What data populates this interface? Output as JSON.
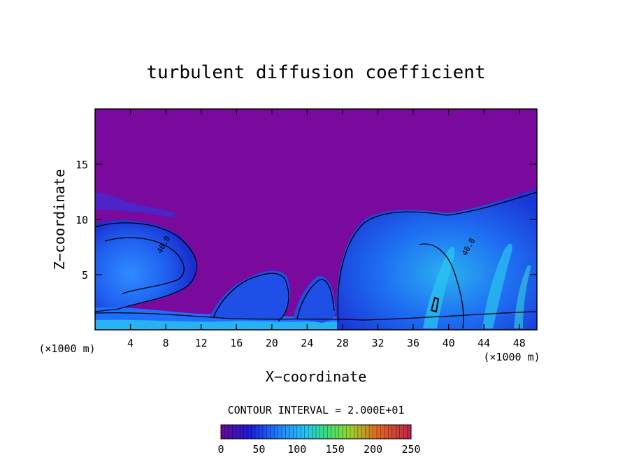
{
  "chart_data": {
    "type": "heatmap",
    "title": "turbulent diffusion coefficient",
    "xlabel": "X−coordinate",
    "ylabel": "Z−coordinate",
    "x_unit_left": "(×1000 m)",
    "x_unit_right": "(×1000 m)",
    "x_ticks": [
      4,
      8,
      12,
      16,
      20,
      24,
      28,
      32,
      36,
      40,
      44,
      48
    ],
    "y_ticks": [
      5,
      10,
      15
    ],
    "xlim": [
      0,
      50
    ],
    "ylim": [
      0,
      20
    ],
    "contour_interval_text": "CONTOUR INTERVAL = 2.000E+01",
    "contour_labels": [
      {
        "text": "40.0",
        "x": 8,
        "z": 7.6
      },
      {
        "text": "40.0",
        "x": 42.5,
        "z": 7.4
      }
    ],
    "colorbar": {
      "min": 0,
      "max": 250,
      "ticks": [
        0,
        50,
        100,
        150,
        200,
        250
      ],
      "colors": [
        "#7a0a9e",
        "#1a1ad8",
        "#1f6fff",
        "#29c4f0",
        "#33e07a",
        "#9ad430",
        "#e06a20",
        "#c0204a"
      ]
    },
    "background_color": "#7a0a9e",
    "regions": [
      {
        "name": "left-cell",
        "peak_value": 60,
        "center": [
          3,
          5.5
        ],
        "extent": [
          0,
          13
        ]
      },
      {
        "name": "mid-left-cell",
        "peak_value": 90,
        "center": [
          17,
          2.5
        ],
        "extent": [
          12,
          23
        ]
      },
      {
        "name": "mid-cell",
        "peak_value": 90,
        "center": [
          25,
          2.5
        ],
        "extent": [
          22,
          28
        ]
      },
      {
        "name": "right-cell",
        "peak_value": 120,
        "center": [
          42,
          4
        ],
        "extent": [
          27,
          50
        ]
      }
    ]
  }
}
